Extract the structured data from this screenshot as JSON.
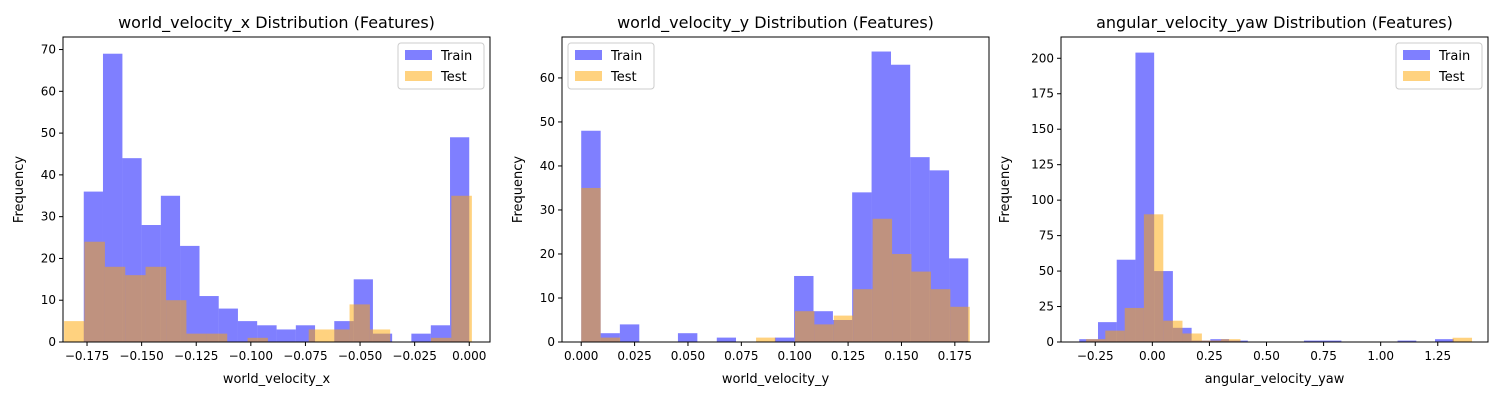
{
  "chart_data": [
    {
      "type": "histogram",
      "title": "world_velocity_x Distribution (Features)",
      "xlabel": "world_velocity_x",
      "ylabel": "Frequency",
      "xlim": [
        -0.186,
        0.0095
      ],
      "ylim": [
        0,
        73
      ],
      "xticks": [
        -0.175,
        -0.15,
        -0.125,
        -0.1,
        -0.075,
        -0.05,
        -0.025,
        0.0
      ],
      "xtick_labels": [
        "−0.175",
        "−0.150",
        "−0.125",
        "−0.100",
        "−0.075",
        "−0.050",
        "−0.025",
        "0.000"
      ],
      "yticks": [
        0,
        10,
        20,
        30,
        40,
        50,
        60,
        70
      ],
      "legend_position": "top-right",
      "series": [
        {
          "name": "Train",
          "color": "#0000ff",
          "alpha": 0.5,
          "bins": [
            [
              -0.1765,
              -0.1677,
              36
            ],
            [
              -0.1677,
              -0.1588,
              69
            ],
            [
              -0.1588,
              -0.15,
              44
            ],
            [
              -0.15,
              -0.1412,
              28
            ],
            [
              -0.1412,
              -0.1324,
              35
            ],
            [
              -0.1324,
              -0.1235,
              23
            ],
            [
              -0.1235,
              -0.1147,
              11
            ],
            [
              -0.1147,
              -0.1059,
              8
            ],
            [
              -0.1059,
              -0.0971,
              5
            ],
            [
              -0.0971,
              -0.0882,
              4
            ],
            [
              -0.0882,
              -0.0794,
              3
            ],
            [
              -0.0794,
              -0.0706,
              4
            ],
            [
              -0.0706,
              -0.0618,
              0
            ],
            [
              -0.0618,
              -0.0529,
              5
            ],
            [
              -0.0529,
              -0.0441,
              15
            ],
            [
              -0.0441,
              -0.0353,
              2
            ],
            [
              -0.0353,
              -0.0265,
              0
            ],
            [
              -0.0265,
              -0.0176,
              2
            ],
            [
              -0.0176,
              -0.0088,
              4
            ],
            [
              -0.0088,
              0.0,
              49
            ]
          ]
        },
        {
          "name": "Test",
          "color": "#ffa500",
          "alpha": 0.5,
          "bins": [
            [
              -0.1855,
              -0.1762,
              5
            ],
            [
              -0.1762,
              -0.1668,
              24
            ],
            [
              -0.1668,
              -0.1575,
              18
            ],
            [
              -0.1575,
              -0.1482,
              16
            ],
            [
              -0.1482,
              -0.1388,
              18
            ],
            [
              -0.1388,
              -0.1295,
              10
            ],
            [
              -0.1295,
              -0.1202,
              2
            ],
            [
              -0.1202,
              -0.1108,
              2
            ],
            [
              -0.1108,
              -0.1015,
              0
            ],
            [
              -0.1015,
              -0.0922,
              1
            ],
            [
              -0.0922,
              -0.0828,
              0
            ],
            [
              -0.0828,
              -0.0735,
              0
            ],
            [
              -0.0735,
              -0.0642,
              3
            ],
            [
              -0.0642,
              -0.0548,
              3
            ],
            [
              -0.0548,
              -0.0455,
              9
            ],
            [
              -0.0455,
              -0.0362,
              3
            ],
            [
              -0.0362,
              -0.0268,
              0
            ],
            [
              -0.0268,
              -0.0175,
              0
            ],
            [
              -0.0175,
              -0.0082,
              1
            ],
            [
              -0.0082,
              0.0012,
              35
            ]
          ]
        }
      ]
    },
    {
      "type": "histogram",
      "title": "world_velocity_y Distribution (Features)",
      "xlabel": "world_velocity_y",
      "ylabel": "Frequency",
      "xlim": [
        -0.009,
        0.191
      ],
      "ylim": [
        0,
        69.3
      ],
      "xticks": [
        0.0,
        0.025,
        0.05,
        0.075,
        0.1,
        0.125,
        0.15,
        0.175
      ],
      "xtick_labels": [
        "0.000",
        "0.025",
        "0.050",
        "0.075",
        "0.100",
        "0.125",
        "0.150",
        "0.175"
      ],
      "yticks": [
        0,
        10,
        20,
        30,
        40,
        50,
        60
      ],
      "legend_position": "top-left",
      "series": [
        {
          "name": "Train",
          "color": "#0000ff",
          "alpha": 0.5,
          "bins": [
            [
              0.0,
              0.0091,
              48
            ],
            [
              0.0091,
              0.0181,
              2
            ],
            [
              0.0181,
              0.0272,
              4
            ],
            [
              0.0272,
              0.0363,
              0
            ],
            [
              0.0363,
              0.0453,
              0
            ],
            [
              0.0453,
              0.0544,
              2
            ],
            [
              0.0544,
              0.0635,
              0
            ],
            [
              0.0635,
              0.0725,
              1
            ],
            [
              0.0725,
              0.0816,
              0
            ],
            [
              0.0816,
              0.0907,
              0
            ],
            [
              0.0907,
              0.0997,
              1
            ],
            [
              0.0997,
              0.1088,
              15
            ],
            [
              0.1088,
              0.1179,
              7
            ],
            [
              0.1179,
              0.1269,
              5
            ],
            [
              0.1269,
              0.136,
              34
            ],
            [
              0.136,
              0.1451,
              66
            ],
            [
              0.1451,
              0.1541,
              63
            ],
            [
              0.1541,
              0.1632,
              42
            ],
            [
              0.1632,
              0.1723,
              39
            ],
            [
              0.1723,
              0.1813,
              19
            ]
          ]
        },
        {
          "name": "Test",
          "color": "#ffa500",
          "alpha": 0.5,
          "bins": [
            [
              0.0,
              0.0091,
              35
            ],
            [
              0.0091,
              0.0182,
              1
            ],
            [
              0.0182,
              0.0273,
              0
            ],
            [
              0.0273,
              0.0364,
              0
            ],
            [
              0.0364,
              0.0455,
              0
            ],
            [
              0.0455,
              0.0546,
              0
            ],
            [
              0.0546,
              0.0637,
              0
            ],
            [
              0.0637,
              0.0728,
              0
            ],
            [
              0.0728,
              0.0819,
              0
            ],
            [
              0.0819,
              0.091,
              1
            ],
            [
              0.091,
              0.1001,
              0
            ],
            [
              0.1001,
              0.1092,
              7
            ],
            [
              0.1092,
              0.1183,
              4
            ],
            [
              0.1183,
              0.1274,
              6
            ],
            [
              0.1274,
              0.1365,
              12
            ],
            [
              0.1365,
              0.1456,
              28
            ],
            [
              0.1456,
              0.1547,
              20
            ],
            [
              0.1547,
              0.1638,
              16
            ],
            [
              0.1638,
              0.1729,
              12
            ],
            [
              0.1729,
              0.182,
              8
            ]
          ]
        }
      ]
    },
    {
      "type": "histogram",
      "title": "angular_velocity_yaw Distribution (Features)",
      "xlabel": "angular_velocity_yaw",
      "ylabel": "Frequency",
      "xlim": [
        -0.4,
        1.47
      ],
      "ylim": [
        0,
        215
      ],
      "xticks": [
        -0.25,
        0.0,
        0.25,
        0.5,
        0.75,
        1.0,
        1.25
      ],
      "xtick_labels": [
        "−0.25",
        "0.00",
        "0.25",
        "0.50",
        "0.75",
        "1.00",
        "1.25"
      ],
      "yticks": [
        0,
        25,
        50,
        75,
        100,
        125,
        150,
        175,
        200
      ],
      "legend_position": "top-right",
      "series": [
        {
          "name": "Train",
          "color": "#0000ff",
          "alpha": 0.5,
          "bins": [
            [
              -0.32,
              -0.238,
              2
            ],
            [
              -0.238,
              -0.156,
              14
            ],
            [
              -0.156,
              -0.074,
              58
            ],
            [
              -0.074,
              0.008,
              204
            ],
            [
              0.008,
              0.09,
              50
            ],
            [
              0.09,
              0.172,
              10
            ],
            [
              0.172,
              0.254,
              1
            ],
            [
              0.254,
              0.336,
              2
            ],
            [
              0.336,
              0.418,
              1
            ],
            [
              0.418,
              0.5,
              0
            ],
            [
              0.5,
              0.582,
              0
            ],
            [
              0.582,
              0.664,
              0
            ],
            [
              0.664,
              0.746,
              1
            ],
            [
              0.746,
              0.828,
              1
            ],
            [
              0.828,
              0.91,
              0
            ],
            [
              0.91,
              0.992,
              0
            ],
            [
              0.992,
              1.074,
              0
            ],
            [
              1.074,
              1.156,
              1
            ],
            [
              1.156,
              1.238,
              0
            ],
            [
              1.238,
              1.32,
              2
            ]
          ]
        },
        {
          "name": "Test",
          "color": "#ffa500",
          "alpha": 0.5,
          "bins": [
            [
              -0.29,
              -0.206,
              2
            ],
            [
              -0.206,
              -0.121,
              8
            ],
            [
              -0.121,
              -0.037,
              24
            ],
            [
              -0.037,
              0.048,
              90
            ],
            [
              0.048,
              0.132,
              15
            ],
            [
              0.132,
              0.217,
              6
            ],
            [
              0.217,
              0.301,
              1
            ],
            [
              0.301,
              0.386,
              2
            ],
            [
              0.386,
              0.47,
              0
            ],
            [
              0.47,
              0.555,
              0
            ],
            [
              0.555,
              0.639,
              0
            ],
            [
              0.639,
              0.724,
              0
            ],
            [
              0.724,
              0.808,
              0
            ],
            [
              0.808,
              0.893,
              0
            ],
            [
              0.893,
              0.977,
              0
            ],
            [
              0.977,
              1.062,
              0
            ],
            [
              1.062,
              1.146,
              0
            ],
            [
              1.146,
              1.231,
              0
            ],
            [
              1.231,
              1.315,
              0
            ],
            [
              1.315,
              1.4,
              3
            ]
          ]
        }
      ]
    }
  ]
}
